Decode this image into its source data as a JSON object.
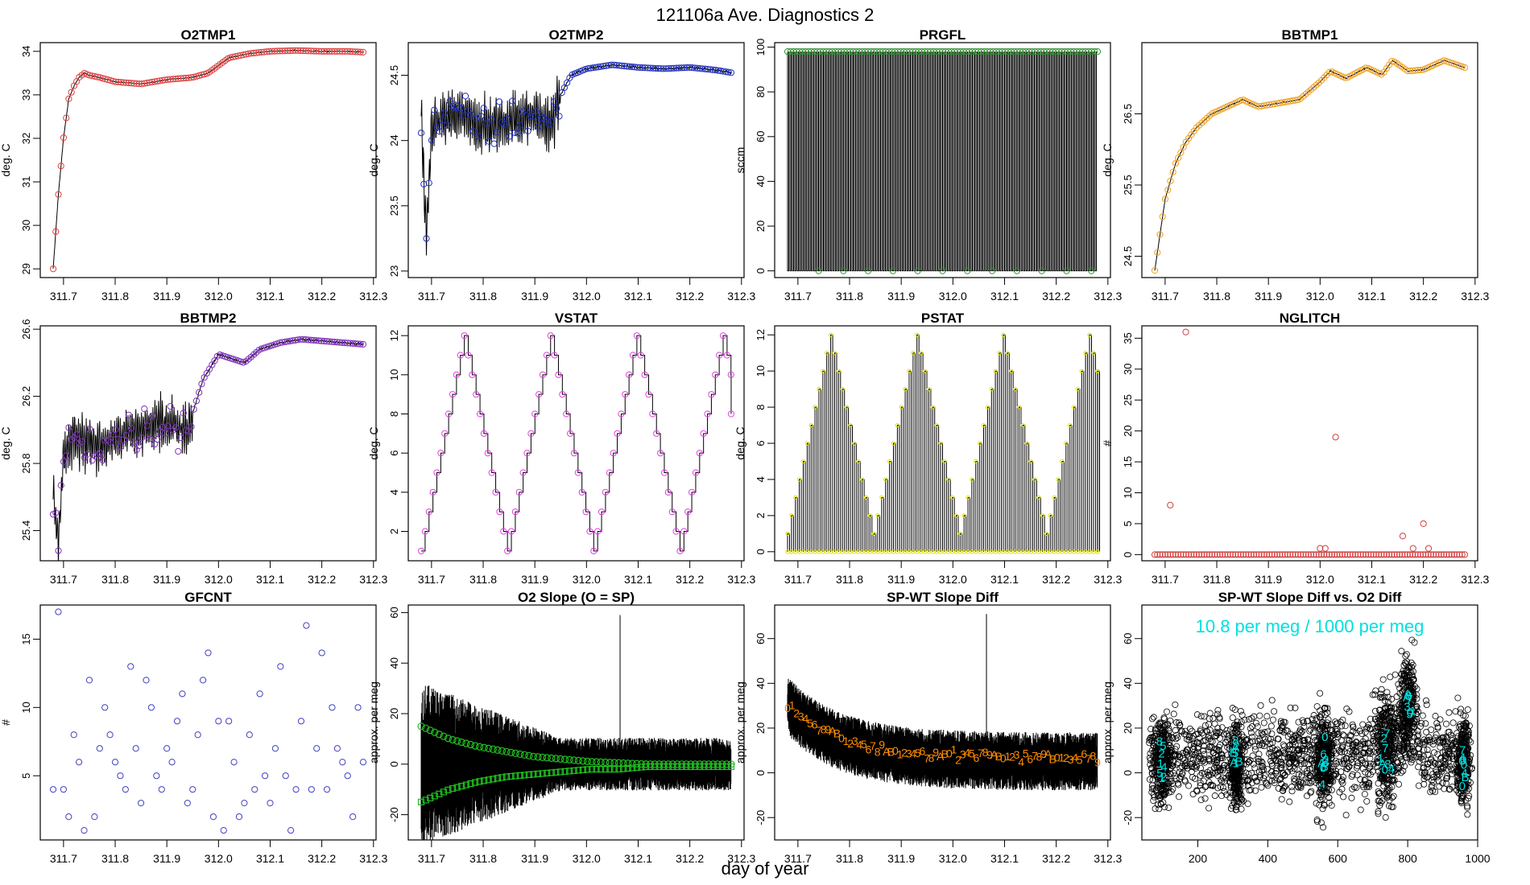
{
  "page": {
    "title": "121106a   Ave. Diagnostics 2",
    "xlabel": "day of year"
  },
  "chart_data": [
    {
      "id": "o2tmp1",
      "type": "line",
      "title": "O2TMP1",
      "ylabel": "deg. C",
      "xlim": [
        311.655,
        312.305
      ],
      "ylim": [
        28.8,
        34.2
      ],
      "yticks": [
        29,
        30,
        31,
        32,
        33,
        34
      ],
      "xticks": [
        311.7,
        311.8,
        311.9,
        312.0,
        312.1,
        312.2,
        312.3
      ],
      "color": "#e04040",
      "x": [
        311.68,
        311.69,
        311.7,
        311.71,
        311.72,
        311.73,
        311.74,
        311.75,
        311.77,
        311.8,
        311.85,
        311.9,
        311.95,
        311.98,
        312.02,
        312.06,
        312.1,
        312.15,
        312.2,
        312.25,
        312.28
      ],
      "y": [
        29.0,
        30.7,
        32.0,
        32.9,
        33.2,
        33.4,
        33.5,
        33.45,
        33.4,
        33.3,
        33.25,
        33.35,
        33.4,
        33.5,
        33.85,
        33.95,
        34.0,
        34.02,
        34.0,
        34.0,
        33.98
      ]
    },
    {
      "id": "o2tmp2",
      "type": "line",
      "title": "O2TMP2",
      "ylabel": "deg. C",
      "xlim": [
        311.655,
        312.305
      ],
      "ylim": [
        22.95,
        24.75
      ],
      "yticks": [
        23.0,
        23.5,
        24.0,
        24.5
      ],
      "xticks": [
        311.7,
        311.8,
        311.9,
        312.0,
        312.1,
        312.2,
        312.3
      ],
      "color": "#2030c0",
      "x": [
        311.68,
        311.69,
        311.7,
        311.72,
        311.75,
        311.8,
        311.85,
        311.9,
        311.93,
        311.95,
        311.97,
        312.0,
        312.05,
        312.1,
        312.15,
        312.2,
        312.25,
        312.28
      ],
      "y": [
        24.2,
        23.2,
        24.1,
        24.15,
        24.2,
        24.1,
        24.15,
        24.2,
        24.1,
        24.35,
        24.5,
        24.55,
        24.58,
        24.56,
        24.55,
        24.56,
        24.54,
        24.52
      ]
    },
    {
      "id": "prgfl",
      "type": "line",
      "title": "PRGFL",
      "ylabel": "sccm",
      "xlim": [
        311.655,
        312.305
      ],
      "ylim": [
        -3,
        102
      ],
      "yticks": [
        0,
        20,
        40,
        60,
        80,
        100
      ],
      "xticks": [
        311.7,
        311.8,
        311.9,
        312.0,
        312.1,
        312.2,
        312.3
      ],
      "color": "#2e8b2e",
      "high": 98,
      "low": 0
    },
    {
      "id": "bbtmp1",
      "type": "line",
      "title": "BBTMP1",
      "ylabel": "deg. C",
      "xlim": [
        311.655,
        312.305
      ],
      "ylim": [
        24.2,
        27.5
      ],
      "yticks": [
        24.5,
        25.5,
        26.5
      ],
      "xticks": [
        311.7,
        311.8,
        311.9,
        312.0,
        312.1,
        312.2,
        312.3
      ],
      "color": "#f0a020",
      "x": [
        311.68,
        311.69,
        311.7,
        311.72,
        311.74,
        311.76,
        311.79,
        311.82,
        311.85,
        311.88,
        311.92,
        311.96,
        312.0,
        312.02,
        312.05,
        312.09,
        312.12,
        312.14,
        312.17,
        312.2,
        312.24,
        312.26,
        312.28
      ],
      "y": [
        24.3,
        24.8,
        25.3,
        25.8,
        26.1,
        26.3,
        26.5,
        26.6,
        26.7,
        26.6,
        26.65,
        26.7,
        26.95,
        27.1,
        27.0,
        27.15,
        27.05,
        27.25,
        27.1,
        27.12,
        27.25,
        27.2,
        27.15
      ]
    },
    {
      "id": "bbtmp2",
      "type": "line",
      "title": "BBTMP2",
      "ylabel": "deg. C",
      "xlim": [
        311.655,
        312.305
      ],
      "ylim": [
        25.22,
        26.62
      ],
      "yticks": [
        25.4,
        25.8,
        26.2,
        26.6
      ],
      "xticks": [
        311.7,
        311.8,
        311.9,
        312.0,
        312.1,
        312.2,
        312.3
      ],
      "color": "#8030c0",
      "x": [
        311.68,
        311.69,
        311.7,
        311.72,
        311.76,
        311.8,
        311.85,
        311.9,
        311.94,
        311.97,
        312.0,
        312.03,
        312.05,
        312.08,
        312.12,
        312.16,
        312.2,
        312.24,
        312.28
      ],
      "y": [
        25.6,
        25.3,
        25.85,
        25.95,
        25.9,
        25.95,
        26.0,
        26.05,
        26.0,
        26.3,
        26.45,
        26.42,
        26.4,
        26.48,
        26.52,
        26.54,
        26.53,
        26.52,
        26.51
      ]
    },
    {
      "id": "vstat",
      "type": "step",
      "title": "VSTAT",
      "ylabel": "deg. C",
      "xlim": [
        311.655,
        312.305
      ],
      "ylim": [
        0.5,
        12.5
      ],
      "yticks": [
        2,
        4,
        6,
        8,
        10,
        12
      ],
      "xticks": [
        311.7,
        311.8,
        311.9,
        312.0,
        312.1,
        312.2,
        312.3
      ],
      "color": "#e040e0",
      "x0": 311.68,
      "period": 0.167,
      "max": 12,
      "min": 1,
      "end": 8
    },
    {
      "id": "pstat",
      "type": "spikes",
      "title": "PSTAT",
      "ylabel": "deg. C",
      "xlim": [
        311.655,
        312.305
      ],
      "ylim": [
        -0.5,
        12.5
      ],
      "yticks": [
        0,
        2,
        4,
        6,
        8,
        10,
        12
      ],
      "xticks": [
        311.7,
        311.8,
        311.9,
        312.0,
        312.1,
        312.2,
        312.3
      ],
      "color": "#e0e000",
      "x0": 311.68,
      "period": 0.167,
      "max": 12,
      "min": 1,
      "end": 10
    },
    {
      "id": "nglitch",
      "type": "scatter",
      "title": "NGLITCH",
      "ylabel": "#",
      "xlim": [
        311.655,
        312.305
      ],
      "ylim": [
        -1,
        37
      ],
      "yticks": [
        0,
        5,
        10,
        15,
        20,
        25,
        30,
        35
      ],
      "xticks": [
        311.7,
        311.8,
        311.9,
        312.0,
        312.1,
        312.2,
        312.3
      ],
      "color": "#d04040",
      "x": [
        311.71,
        311.74,
        312.0,
        312.01,
        312.03,
        312.16,
        312.18,
        312.2,
        312.21
      ],
      "y": [
        8,
        36,
        1,
        1,
        19,
        3,
        1,
        5,
        1
      ],
      "baseline": 0
    },
    {
      "id": "gfcnt",
      "type": "scatter",
      "title": "GFCNT",
      "ylabel": "#",
      "xlim": [
        311.655,
        312.305
      ],
      "ylim": [
        0.3,
        17.5
      ],
      "yticks": [
        5,
        10,
        15
      ],
      "xticks": [
        311.7,
        311.8,
        311.9,
        312.0,
        312.1,
        312.2,
        312.3
      ],
      "color": "#4040c0",
      "x": [
        311.68,
        311.69,
        311.7,
        311.71,
        311.72,
        311.73,
        311.74,
        311.75,
        311.76,
        311.77,
        311.78,
        311.79,
        311.8,
        311.81,
        311.82,
        311.83,
        311.84,
        311.85,
        311.86,
        311.87,
        311.88,
        311.89,
        311.9,
        311.91,
        311.92,
        311.93,
        311.94,
        311.95,
        311.96,
        311.97,
        311.98,
        311.99,
        312.0,
        312.01,
        312.02,
        312.03,
        312.04,
        312.05,
        312.06,
        312.07,
        312.08,
        312.09,
        312.1,
        312.11,
        312.12,
        312.13,
        312.14,
        312.15,
        312.16,
        312.17,
        312.18,
        312.19,
        312.2,
        312.21,
        312.22,
        312.23,
        312.24,
        312.25,
        312.26,
        312.27,
        312.28
      ],
      "y": [
        4,
        17,
        4,
        2,
        8,
        6,
        1,
        12,
        2,
        7,
        10,
        8,
        6,
        5,
        4,
        13,
        7,
        3,
        12,
        10,
        5,
        4,
        7,
        6,
        9,
        11,
        3,
        4,
        8,
        12,
        14,
        2,
        9,
        1,
        9,
        6,
        2,
        3,
        8,
        4,
        11,
        5,
        3,
        7,
        13,
        5,
        1,
        4,
        9,
        16,
        4,
        7,
        14,
        4,
        10,
        7,
        6,
        5,
        2,
        10,
        6
      ]
    },
    {
      "id": "o2slope",
      "type": "noise",
      "title": "O2 Slope (O = SP)",
      "ylabel": "approx. per meg",
      "xlim": [
        311.655,
        312.305
      ],
      "ylim": [
        -30,
        63
      ],
      "yticks": [
        -20,
        0,
        20,
        40,
        60
      ],
      "xticks": [
        311.7,
        311.8,
        311.9,
        312.0,
        312.1,
        312.2,
        312.3
      ],
      "color": "#20c020",
      "center": 0,
      "band_start": 25,
      "band_end": 8,
      "spike_x": 312.065,
      "spike_y": 59,
      "series_a": [
        15,
        10,
        7,
        5,
        3,
        2,
        1,
        0.5,
        0,
        0,
        0,
        0
      ],
      "series_b": [
        -15,
        -10,
        -7,
        -5,
        -4,
        -3,
        -2,
        -2,
        -1,
        -1,
        -1,
        -1
      ]
    },
    {
      "id": "spwt",
      "type": "noise",
      "title": "SP-WT Slope Diff",
      "ylabel": "approx. per meg",
      "xlim": [
        311.655,
        312.305
      ],
      "ylim": [
        -30,
        75
      ],
      "yticks": [
        -20,
        0,
        20,
        40,
        60
      ],
      "xticks": [
        311.7,
        311.8,
        311.9,
        312.0,
        312.1,
        312.2,
        312.3
      ],
      "color": "#ff8c00",
      "center_start": 30,
      "center_end": 5,
      "band": 10,
      "spike_x": 312.065,
      "spike_y": 71
    },
    {
      "id": "spwt_vs_o2",
      "type": "scatter",
      "title": "SP-WT Slope Diff vs. O2 Diff",
      "ylabel": "approx. per meg",
      "annotation": "10.8 per meg / 1000 per meg",
      "xlim": [
        40,
        1000
      ],
      "ylim": [
        -30,
        75
      ],
      "yticks": [
        -20,
        0,
        20,
        40,
        60
      ],
      "xticks": [
        200,
        400,
        600,
        800,
        1000
      ],
      "color": "#00e0e0",
      "clusters": [
        {
          "x": 100,
          "y": 5,
          "sx": 20,
          "sy": 9
        },
        {
          "x": 310,
          "y": 3,
          "sx": 15,
          "sy": 9
        },
        {
          "x": 560,
          "y": 5,
          "sx": 20,
          "sy": 11
        },
        {
          "x": 740,
          "y": 8,
          "sx": 25,
          "sy": 13
        },
        {
          "x": 800,
          "y": 30,
          "sx": 20,
          "sy": 10
        },
        {
          "x": 960,
          "y": 5,
          "sx": 15,
          "sy": 9
        }
      ]
    }
  ]
}
